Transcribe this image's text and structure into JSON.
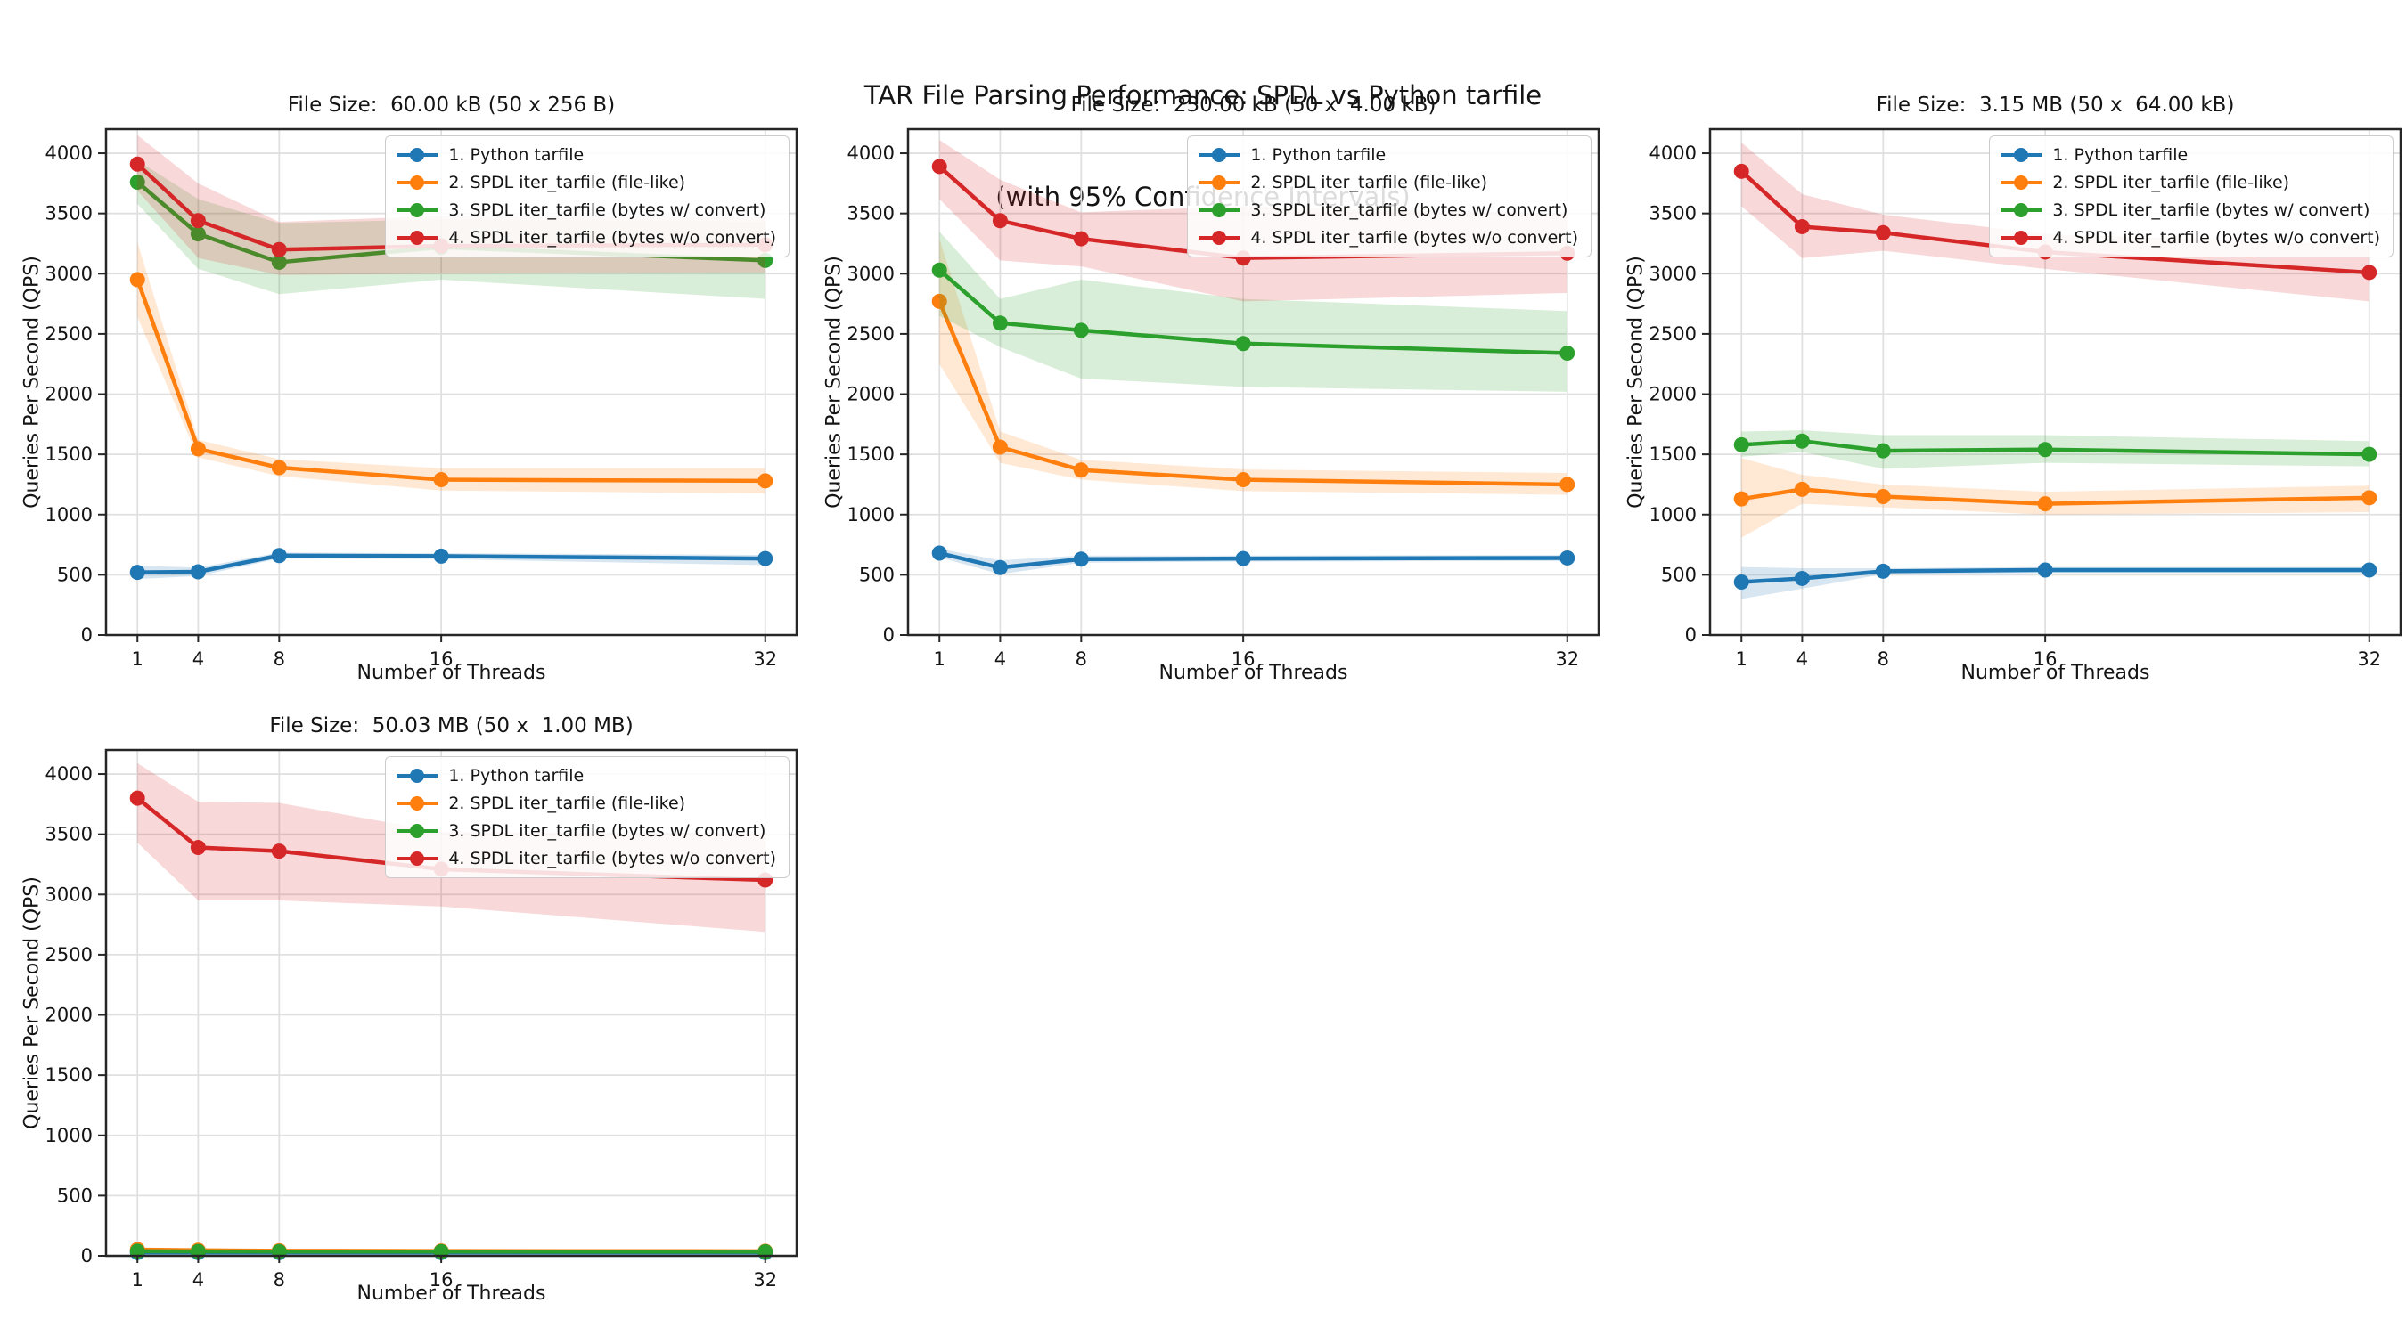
{
  "figure": {
    "suptitle_line1": "TAR File Parsing Performance: SPDL vs Python tarfile",
    "suptitle_line2": "(with 95% Confidence Intervals)",
    "background_color": "#ffffff",
    "text_color": "#141414"
  },
  "chart_data": [
    {
      "type": "line",
      "title": "File Size:  60.00 kB (50 x 256 B)",
      "xlabel": "Number of Threads",
      "ylabel": "Queries Per Second (QPS)",
      "x": [
        1,
        4,
        8,
        16,
        32
      ],
      "xticks": [
        1,
        4,
        8,
        16,
        32
      ],
      "yticks": [
        0,
        500,
        1000,
        1500,
        2000,
        2500,
        3000,
        3500,
        4000
      ],
      "ylim": [
        0,
        4200
      ],
      "grid": true,
      "legend_loc": "upper right",
      "series": [
        {
          "name": "1. Python tarfile",
          "color": "#1f77b4",
          "values": [
            520,
            525,
            660,
            655,
            635
          ],
          "ci_lower": [
            465,
            490,
            635,
            630,
            580
          ],
          "ci_upper": [
            575,
            560,
            685,
            680,
            665
          ]
        },
        {
          "name": "2. SPDL iter_tarfile (file-like)",
          "color": "#ff7f0e",
          "values": [
            2950,
            1545,
            1390,
            1290,
            1280
          ],
          "ci_lower": [
            2640,
            1475,
            1320,
            1200,
            1175
          ],
          "ci_upper": [
            3260,
            1620,
            1460,
            1385,
            1385
          ]
        },
        {
          "name": "3. SPDL iter_tarfile (bytes w/ convert)",
          "color": "#2ca02c",
          "values": [
            3760,
            3330,
            3095,
            3220,
            3110
          ],
          "ci_lower": [
            3580,
            3040,
            2830,
            2950,
            2790
          ],
          "ci_upper": [
            3940,
            3620,
            3420,
            3450,
            3430
          ]
        },
        {
          "name": "4. SPDL iter_tarfile (bytes w/o convert)",
          "color": "#d62728",
          "values": [
            3910,
            3440,
            3200,
            3230,
            3240
          ],
          "ci_lower": [
            3690,
            3130,
            2990,
            3000,
            3010
          ],
          "ci_upper": [
            4150,
            3750,
            3430,
            3480,
            3470
          ]
        }
      ]
    },
    {
      "type": "line",
      "title": "File Size:  230.00 kB (50 x  4.00 kB)",
      "xlabel": "Number of Threads",
      "ylabel": "Queries Per Second (QPS)",
      "x": [
        1,
        4,
        8,
        16,
        32
      ],
      "xticks": [
        1,
        4,
        8,
        16,
        32
      ],
      "yticks": [
        0,
        500,
        1000,
        1500,
        2000,
        2500,
        3000,
        3500,
        4000
      ],
      "ylim": [
        0,
        4200
      ],
      "grid": true,
      "legend_loc": "upper right",
      "series": [
        {
          "name": "1. Python tarfile",
          "color": "#1f77b4",
          "values": [
            680,
            560,
            630,
            635,
            640
          ],
          "ci_lower": [
            645,
            505,
            600,
            610,
            615
          ],
          "ci_upper": [
            715,
            620,
            660,
            660,
            665
          ]
        },
        {
          "name": "2. SPDL iter_tarfile (file-like)",
          "color": "#ff7f0e",
          "values": [
            2770,
            1560,
            1370,
            1290,
            1250
          ],
          "ci_lower": [
            2250,
            1430,
            1290,
            1195,
            1165
          ],
          "ci_upper": [
            3290,
            1690,
            1455,
            1375,
            1345
          ]
        },
        {
          "name": "3. SPDL iter_tarfile (bytes w/ convert)",
          "color": "#2ca02c",
          "values": [
            3030,
            2590,
            2530,
            2420,
            2340
          ],
          "ci_lower": [
            2650,
            2390,
            2130,
            2060,
            2020
          ],
          "ci_upper": [
            3350,
            2790,
            2950,
            2790,
            2690
          ]
        },
        {
          "name": "4. SPDL iter_tarfile (bytes w/o convert)",
          "color": "#d62728",
          "values": [
            3890,
            3440,
            3290,
            3130,
            3170
          ],
          "ci_lower": [
            3620,
            3110,
            3060,
            2770,
            2840
          ],
          "ci_upper": [
            4110,
            3780,
            3510,
            3560,
            3500
          ]
        }
      ]
    },
    {
      "type": "line",
      "title": "File Size:  3.15 MB (50 x  64.00 kB)",
      "xlabel": "Number of Threads",
      "ylabel": "Queries Per Second (QPS)",
      "x": [
        1,
        4,
        8,
        16,
        32
      ],
      "xticks": [
        1,
        4,
        8,
        16,
        32
      ],
      "yticks": [
        0,
        500,
        1000,
        1500,
        2000,
        2500,
        3000,
        3500,
        4000
      ],
      "ylim": [
        0,
        4200
      ],
      "grid": true,
      "legend_loc": "upper right",
      "series": [
        {
          "name": "1. Python tarfile",
          "color": "#1f77b4",
          "values": [
            440,
            470,
            530,
            540,
            540
          ],
          "ci_lower": [
            300,
            385,
            505,
            515,
            515
          ],
          "ci_upper": [
            565,
            555,
            555,
            565,
            565
          ]
        },
        {
          "name": "2. SPDL iter_tarfile (file-like)",
          "color": "#ff7f0e",
          "values": [
            1130,
            1210,
            1150,
            1090,
            1140
          ],
          "ci_lower": [
            810,
            1090,
            1060,
            1000,
            1020
          ],
          "ci_upper": [
            1470,
            1330,
            1250,
            1190,
            1240
          ]
        },
        {
          "name": "3. SPDL iter_tarfile (bytes w/ convert)",
          "color": "#2ca02c",
          "values": [
            1580,
            1610,
            1530,
            1540,
            1500
          ],
          "ci_lower": [
            1480,
            1520,
            1380,
            1430,
            1400
          ],
          "ci_upper": [
            1690,
            1700,
            1660,
            1660,
            1610
          ]
        },
        {
          "name": "4. SPDL iter_tarfile (bytes w/o convert)",
          "color": "#d62728",
          "values": [
            3850,
            3390,
            3340,
            3180,
            3010
          ],
          "ci_lower": [
            3560,
            3130,
            3190,
            3040,
            2770
          ],
          "ci_upper": [
            4090,
            3660,
            3490,
            3330,
            3240
          ]
        }
      ]
    },
    {
      "type": "line",
      "title": "File Size:  50.03 MB (50 x  1.00 MB)",
      "xlabel": "Number of Threads",
      "ylabel": "Queries Per Second (QPS)",
      "x": [
        1,
        4,
        8,
        16,
        32
      ],
      "xticks": [
        1,
        4,
        8,
        16,
        32
      ],
      "yticks": [
        0,
        500,
        1000,
        1500,
        2000,
        2500,
        3000,
        3500,
        4000
      ],
      "ylim": [
        0,
        4200
      ],
      "grid": true,
      "legend_loc": "upper right",
      "series": [
        {
          "name": "1. Python tarfile",
          "color": "#1f77b4",
          "values": [
            28,
            28,
            28,
            28,
            28
          ],
          "ci_lower": [
            24,
            25,
            26,
            26,
            26
          ],
          "ci_upper": [
            32,
            31,
            30,
            30,
            30
          ]
        },
        {
          "name": "2. SPDL iter_tarfile (file-like)",
          "color": "#ff7f0e",
          "values": [
            52,
            46,
            42,
            40,
            38
          ],
          "ci_lower": [
            44,
            40,
            38,
            36,
            34
          ],
          "ci_upper": [
            60,
            52,
            46,
            44,
            42
          ]
        },
        {
          "name": "3. SPDL iter_tarfile (bytes w/ convert)",
          "color": "#2ca02c",
          "values": [
            38,
            36,
            35,
            35,
            34
          ],
          "ci_lower": [
            33,
            32,
            32,
            32,
            31
          ],
          "ci_upper": [
            43,
            40,
            38,
            38,
            37
          ]
        },
        {
          "name": "4. SPDL iter_tarfile (bytes w/o convert)",
          "color": "#d62728",
          "values": [
            3800,
            3390,
            3360,
            3210,
            3120
          ],
          "ci_lower": [
            3430,
            2950,
            2950,
            2900,
            2690
          ],
          "ci_upper": [
            4090,
            3770,
            3760,
            3520,
            3510
          ]
        }
      ]
    }
  ]
}
